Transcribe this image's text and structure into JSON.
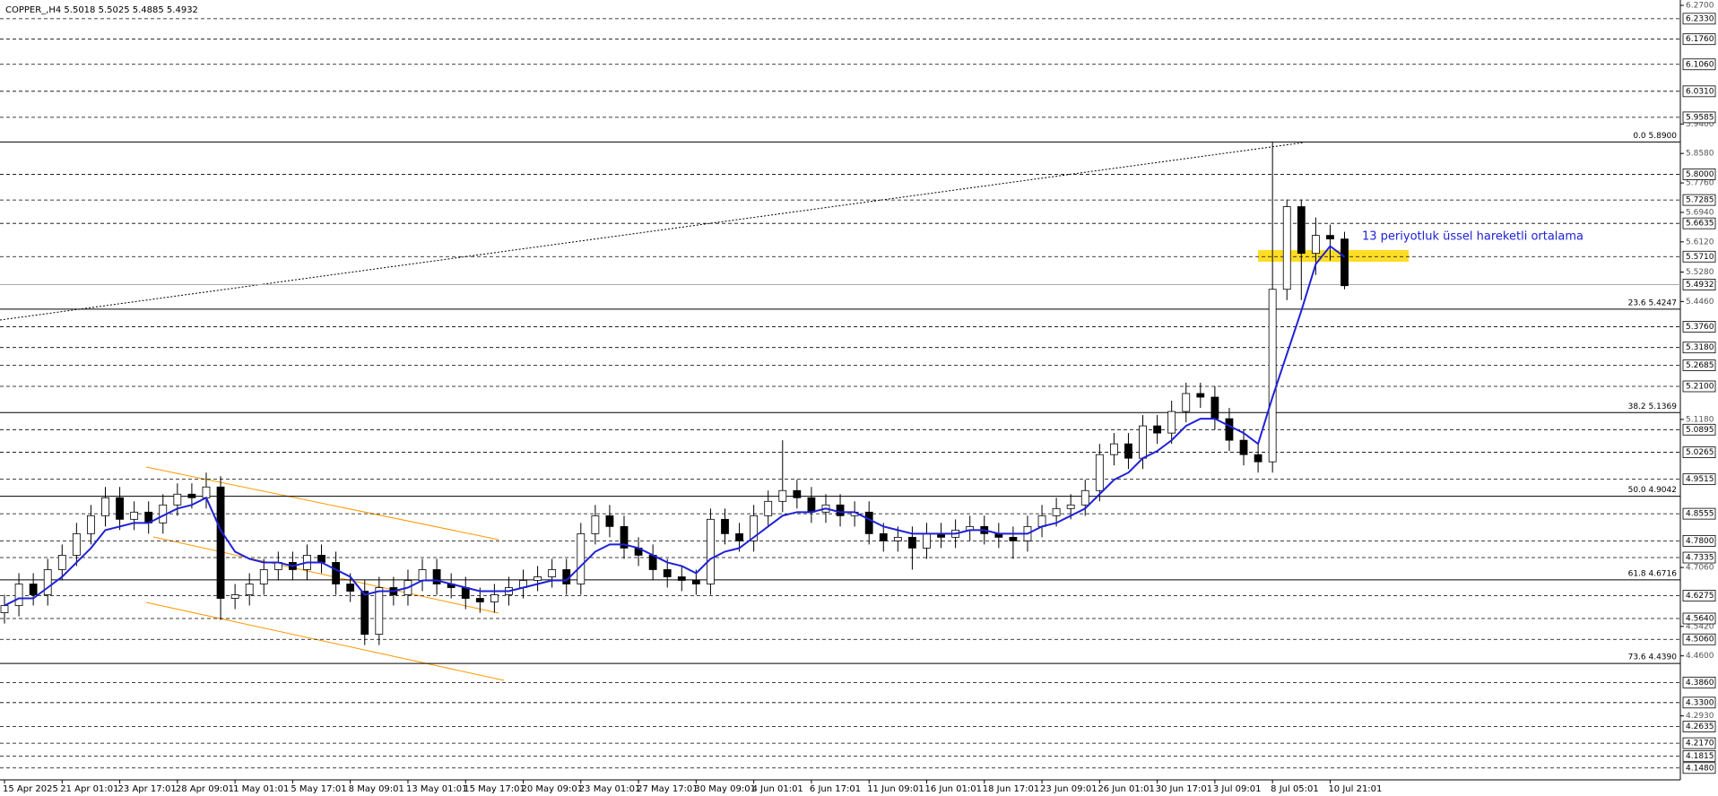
{
  "chart_data": {
    "type": "candlestick",
    "title": "COPPER_,H4  5.5018 5.5025 5.4885 5.4932",
    "annotation": "13 periyotluk üssel hareketli ortalama",
    "categories": [
      "15 Apr 2025",
      null,
      null,
      null,
      "21 Apr 01:01",
      null,
      null,
      null,
      "23 Apr 17:01",
      null,
      null,
      null,
      "28 Apr 09:01",
      null,
      null,
      null,
      "1 May 01:01",
      null,
      null,
      null,
      "5 May 17:01",
      null,
      null,
      null,
      "8 May 09:01",
      null,
      null,
      null,
      "13 May 01:01",
      null,
      null,
      null,
      "15 May 17:01",
      null,
      null,
      null,
      "20 May 09:01",
      null,
      null,
      null,
      "23 May 01:01",
      null,
      null,
      null,
      "27 May 17:01",
      null,
      null,
      null,
      "30 May 09:01",
      null,
      null,
      null,
      "4 Jun 01:01",
      null,
      null,
      null,
      "6 Jun 17:01",
      null,
      null,
      null,
      "11 Jun 09:01",
      null,
      null,
      null,
      "16 Jun 01:01",
      null,
      null,
      null,
      "18 Jun 17:01",
      null,
      null,
      null,
      "23 Jun 09:01",
      null,
      null,
      null,
      "26 Jun 01:01",
      null,
      null,
      null,
      "30 Jun 17:01",
      null,
      null,
      null,
      "3 Jul 09:01",
      null,
      null,
      null,
      "8 Jul 05:01",
      null,
      null,
      null,
      "10 Jul 21:01",
      null
    ],
    "open": [
      4.58,
      4.6,
      4.66,
      4.63,
      4.7,
      4.74,
      4.8,
      4.85,
      4.9,
      4.84,
      4.86,
      4.83,
      4.88,
      4.91,
      4.9,
      4.93,
      4.62,
      4.63,
      4.66,
      4.7,
      4.72,
      4.7,
      4.74,
      4.72,
      4.66,
      4.64,
      4.52,
      4.65,
      4.63,
      4.67,
      4.7,
      4.66,
      4.65,
      4.62,
      4.61,
      4.63,
      4.65,
      4.67,
      4.68,
      4.7,
      4.66,
      4.8,
      4.85,
      4.82,
      4.76,
      4.74,
      4.7,
      4.68,
      4.67,
      4.66,
      4.84,
      4.8,
      4.78,
      4.85,
      4.89,
      4.92,
      4.9,
      4.86,
      4.88,
      4.85,
      4.86,
      4.8,
      4.78,
      4.79,
      4.76,
      4.8,
      4.79,
      4.81,
      4.82,
      4.8,
      4.79,
      4.78,
      4.82,
      4.85,
      4.87,
      4.88,
      4.92,
      5.02,
      5.05,
      5.01,
      5.1,
      5.08,
      5.14,
      5.19,
      5.18,
      5.12,
      5.06,
      5.02,
      5.0,
      5.48,
      5.71,
      5.58,
      5.63,
      5.62
    ],
    "high": [
      4.63,
      4.69,
      4.69,
      4.73,
      4.77,
      4.83,
      4.88,
      4.93,
      4.93,
      4.89,
      4.89,
      4.91,
      4.94,
      4.94,
      4.97,
      4.96,
      4.66,
      4.69,
      4.73,
      4.75,
      4.75,
      4.77,
      4.77,
      4.75,
      4.69,
      4.67,
      4.68,
      4.68,
      4.7,
      4.73,
      4.73,
      4.69,
      4.68,
      4.65,
      4.66,
      4.68,
      4.7,
      4.71,
      4.73,
      4.73,
      4.83,
      4.88,
      4.88,
      4.85,
      4.79,
      4.77,
      4.73,
      4.71,
      4.7,
      4.87,
      4.87,
      4.83,
      4.88,
      4.92,
      5.06,
      4.95,
      4.93,
      4.91,
      4.91,
      4.89,
      4.89,
      4.83,
      4.82,
      4.82,
      4.83,
      4.83,
      4.84,
      4.85,
      4.85,
      4.83,
      4.82,
      4.85,
      4.88,
      4.9,
      4.91,
      4.95,
      5.05,
      5.08,
      5.08,
      5.13,
      5.13,
      5.17,
      5.22,
      5.22,
      5.21,
      5.15,
      5.09,
      5.05,
      5.89,
      5.73,
      5.73,
      5.68,
      5.66,
      5.64
    ],
    "low": [
      4.55,
      4.57,
      4.6,
      4.6,
      4.67,
      4.71,
      4.77,
      4.82,
      4.81,
      4.81,
      4.8,
      4.8,
      4.85,
      4.87,
      4.87,
      4.56,
      4.59,
      4.6,
      4.63,
      4.67,
      4.67,
      4.67,
      4.69,
      4.63,
      4.61,
      4.49,
      4.49,
      4.6,
      4.6,
      4.64,
      4.63,
      4.62,
      4.59,
      4.58,
      4.58,
      4.6,
      4.62,
      4.64,
      4.65,
      4.63,
      4.63,
      4.77,
      4.79,
      4.73,
      4.71,
      4.67,
      4.65,
      4.64,
      4.63,
      4.63,
      4.77,
      4.75,
      4.75,
      4.82,
      4.86,
      4.87,
      4.83,
      4.83,
      4.82,
      4.82,
      4.77,
      4.75,
      4.75,
      4.7,
      4.73,
      4.76,
      4.76,
      4.78,
      4.77,
      4.76,
      4.73,
      4.75,
      4.79,
      4.82,
      4.84,
      4.85,
      4.89,
      4.99,
      4.98,
      4.98,
      5.05,
      5.05,
      5.11,
      5.15,
      5.09,
      5.03,
      4.99,
      4.97,
      4.97,
      5.45,
      5.45,
      5.52,
      5.56,
      5.48
    ],
    "close": [
      4.6,
      4.66,
      4.63,
      4.7,
      4.74,
      4.8,
      4.85,
      4.9,
      4.84,
      4.86,
      4.83,
      4.88,
      4.91,
      4.9,
      4.93,
      4.62,
      4.63,
      4.66,
      4.7,
      4.72,
      4.7,
      4.74,
      4.72,
      4.66,
      4.64,
      4.52,
      4.65,
      4.63,
      4.67,
      4.7,
      4.66,
      4.65,
      4.62,
      4.61,
      4.63,
      4.65,
      4.67,
      4.68,
      4.7,
      4.66,
      4.8,
      4.85,
      4.82,
      4.76,
      4.74,
      4.7,
      4.68,
      4.67,
      4.66,
      4.84,
      4.8,
      4.78,
      4.85,
      4.89,
      4.92,
      4.9,
      4.86,
      4.88,
      4.85,
      4.86,
      4.8,
      4.78,
      4.79,
      4.76,
      4.8,
      4.79,
      4.81,
      4.82,
      4.8,
      4.79,
      4.78,
      4.82,
      4.85,
      4.87,
      4.88,
      4.92,
      5.02,
      5.05,
      5.01,
      5.1,
      5.08,
      5.14,
      5.19,
      5.18,
      5.12,
      5.06,
      5.02,
      5.0,
      5.48,
      5.71,
      5.58,
      5.63,
      5.62,
      5.49
    ],
    "ema": {
      "color": "#1f22d6",
      "values": [
        4.6,
        4.62,
        4.62,
        4.65,
        4.68,
        4.72,
        4.76,
        4.81,
        4.82,
        4.83,
        4.83,
        4.85,
        4.87,
        4.88,
        4.9,
        4.81,
        4.75,
        4.73,
        4.72,
        4.72,
        4.71,
        4.72,
        4.72,
        4.7,
        4.68,
        4.63,
        4.64,
        4.64,
        4.65,
        4.67,
        4.67,
        4.66,
        4.65,
        4.64,
        4.64,
        4.64,
        4.65,
        4.66,
        4.67,
        4.67,
        4.71,
        4.75,
        4.77,
        4.77,
        4.76,
        4.74,
        4.72,
        4.71,
        4.69,
        4.73,
        4.75,
        4.76,
        4.79,
        4.82,
        4.85,
        4.86,
        4.86,
        4.87,
        4.86,
        4.86,
        4.84,
        4.82,
        4.81,
        4.8,
        4.8,
        4.8,
        4.8,
        4.81,
        4.81,
        4.8,
        4.8,
        4.8,
        4.82,
        4.83,
        4.85,
        4.87,
        4.91,
        4.95,
        4.97,
        5.01,
        5.03,
        5.06,
        5.1,
        5.12,
        5.12,
        5.1,
        5.08,
        5.05,
        5.18,
        5.3,
        5.42,
        5.55,
        5.6,
        5.57
      ]
    },
    "up_color": "#ffffff",
    "down_color": "#000000",
    "wick_color": "#000000",
    "ylim": [
      4.115,
      6.285
    ],
    "yticks": [
      {
        "value": 6.27,
        "label": "6.2700"
      },
      {
        "value": 5.94,
        "label": "5.9400"
      },
      {
        "value": 5.858,
        "label": "5.8580"
      },
      {
        "value": 5.776,
        "label": "5.7760"
      },
      {
        "value": 5.694,
        "label": "5.6940"
      },
      {
        "value": 5.612,
        "label": "5.6120"
      },
      {
        "value": 5.528,
        "label": "5.5280"
      },
      {
        "value": 5.446,
        "label": "5.4460"
      },
      {
        "value": 5.118,
        "label": "5.1180"
      },
      {
        "value": 4.706,
        "label": "4.7060"
      },
      {
        "value": 4.542,
        "label": "4.5420"
      },
      {
        "value": 4.46,
        "label": "4.4600"
      },
      {
        "value": 4.293,
        "label": "4.2930"
      }
    ],
    "levels": [
      {
        "value": 6.233,
        "label": "6.2330"
      },
      {
        "value": 6.176,
        "label": "6.1760"
      },
      {
        "value": 6.106,
        "label": "6.1060"
      },
      {
        "value": 6.031,
        "label": "6.0310"
      },
      {
        "value": 5.9585,
        "label": "5.9585"
      },
      {
        "value": 5.8,
        "label": "5.8000"
      },
      {
        "value": 5.7285,
        "label": "5.7285"
      },
      {
        "value": 5.6635,
        "label": "5.6635"
      },
      {
        "value": 5.571,
        "label": "5.5710"
      },
      {
        "value": 5.376,
        "label": "5.3760"
      },
      {
        "value": 5.318,
        "label": "5.3180"
      },
      {
        "value": 5.2685,
        "label": "5.2685"
      },
      {
        "value": 5.21,
        "label": "5.2100"
      },
      {
        "value": 5.0895,
        "label": "5.0895"
      },
      {
        "value": 5.0265,
        "label": "5.0265"
      },
      {
        "value": 4.9515,
        "label": "4.9515"
      },
      {
        "value": 4.8555,
        "label": "4.8555"
      },
      {
        "value": 4.78,
        "label": "4.7800"
      },
      {
        "value": 4.7335,
        "label": "4.7335"
      },
      {
        "value": 4.6275,
        "label": "4.6275"
      },
      {
        "value": 4.564,
        "label": "4.5640"
      },
      {
        "value": 4.506,
        "label": "4.5060"
      },
      {
        "value": 4.386,
        "label": "4.3860"
      },
      {
        "value": 4.33,
        "label": "4.3300"
      },
      {
        "value": 4.2635,
        "label": "4.2635"
      },
      {
        "value": 4.217,
        "label": "4.2170"
      },
      {
        "value": 4.1815,
        "label": "4.1815"
      },
      {
        "value": 4.148,
        "label": "4.1480"
      }
    ],
    "current_price": {
      "value": 5.4932,
      "label": "5.4932"
    },
    "fib": [
      {
        "value": 5.89,
        "label": "0.0 5.8900"
      },
      {
        "value": 5.4247,
        "label": "23.6 5.4247"
      },
      {
        "value": 5.1369,
        "label": "38.2 5.1369"
      },
      {
        "value": 4.9042,
        "label": "50.0 4.9042"
      },
      {
        "value": 4.6716,
        "label": "61.8 4.6716"
      },
      {
        "value": 4.439,
        "label": "73.6 4.4390"
      }
    ]
  }
}
